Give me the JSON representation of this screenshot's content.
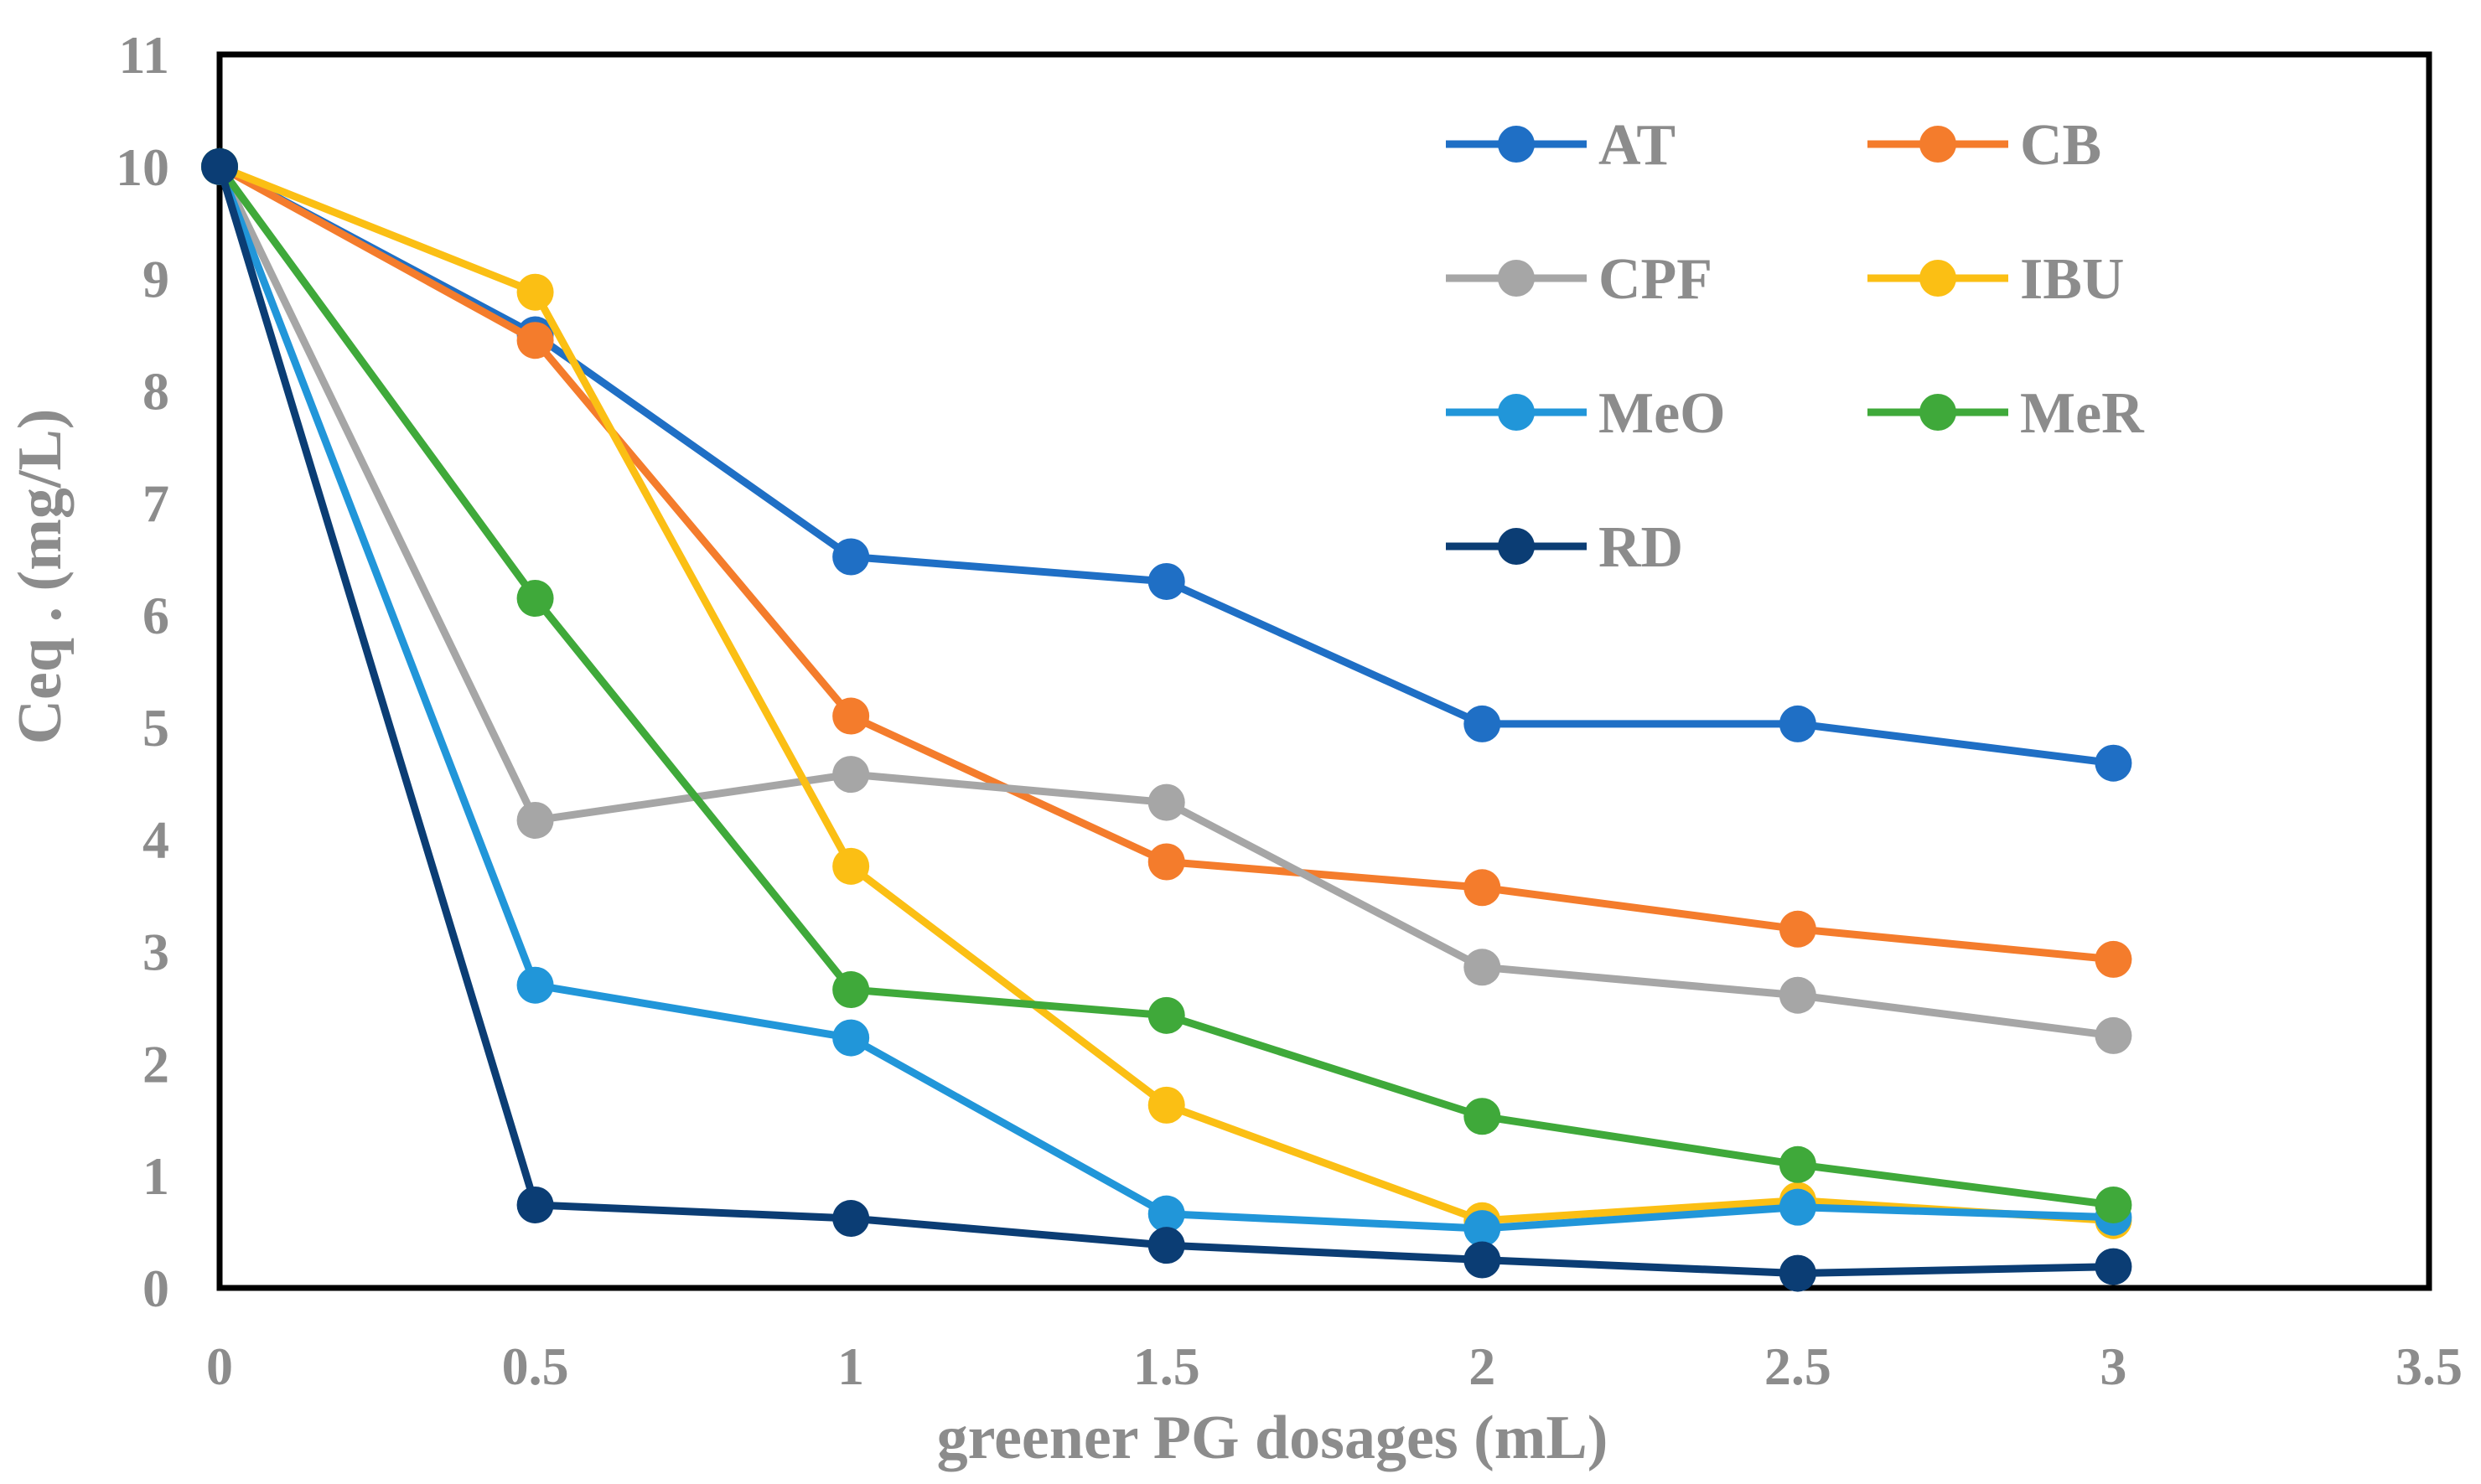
{
  "chart_data": {
    "type": "line",
    "title": "",
    "xlabel": "greener PG dosages (mL)",
    "ylabel": "Ceq . (mg/L)",
    "xlim": [
      0,
      3.5
    ],
    "ylim": [
      0,
      11
    ],
    "xticks": [
      "0",
      "0.5",
      "1",
      "1.5",
      "2",
      "2.5",
      "3",
      "3.5"
    ],
    "yticks": [
      "0",
      "1",
      "2",
      "3",
      "4",
      "5",
      "6",
      "7",
      "8",
      "9",
      "10",
      "11"
    ],
    "grid": false,
    "legend_position": "top-right",
    "x": [
      0,
      0.5,
      1,
      1.5,
      2,
      2.5,
      3
    ],
    "series": [
      {
        "name": "AT",
        "color": "#1f6fc5",
        "values": [
          10,
          8.5,
          6.52,
          6.3,
          5.03,
          5.03,
          4.68
        ]
      },
      {
        "name": "CB",
        "color": "#f47c2c",
        "values": [
          10,
          8.45,
          5.1,
          3.8,
          3.57,
          3.2,
          2.93
        ]
      },
      {
        "name": "CPF",
        "color": "#a6a6a6",
        "values": [
          10,
          4.17,
          4.58,
          4.33,
          2.86,
          2.61,
          2.25
        ]
      },
      {
        "name": "IBU",
        "color": "#fbbf14",
        "values": [
          10,
          8.88,
          3.76,
          1.63,
          0.6,
          0.78,
          0.6
        ]
      },
      {
        "name": "MeO",
        "color": "#2196d9",
        "values": [
          10,
          2.7,
          2.23,
          0.66,
          0.53,
          0.72,
          0.63
        ]
      },
      {
        "name": "MeR",
        "color": "#3fa93a",
        "values": [
          10,
          6.15,
          2.66,
          2.43,
          1.53,
          1.1,
          0.74
        ]
      },
      {
        "name": "RD",
        "color": "#0b3d74",
        "values": [
          10,
          0.74,
          0.62,
          0.38,
          0.25,
          0.13,
          0.19
        ]
      }
    ]
  }
}
